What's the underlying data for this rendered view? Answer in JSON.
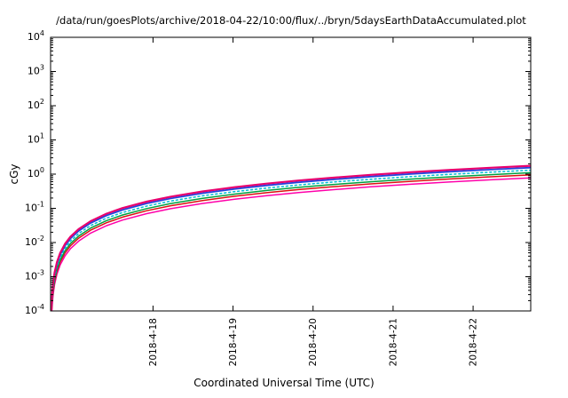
{
  "chart_data": {
    "type": "line",
    "title": "/data/run/goesPlots/archive/2018-04-22/10:00/flux/../bryn/5daysEarthDataAccumulated.plot",
    "xlabel": "Coordinated Universal Time (UTC)",
    "ylabel": "cGy",
    "y_scale": "log",
    "ylim_exponents": [
      -4,
      4
    ],
    "y_tick_exponents": [
      -4,
      -3,
      -2,
      -1,
      0,
      1,
      2,
      3,
      4
    ],
    "xlim_days": [
      0,
      6
    ],
    "grid": "off",
    "legend": "none",
    "x_ticks": [
      {
        "pos": 1.28,
        "label": "2018-4-18"
      },
      {
        "pos": 2.28,
        "label": "2018-4-19"
      },
      {
        "pos": 3.28,
        "label": "2018-4-20"
      },
      {
        "pos": 4.28,
        "label": "2018-4-21"
      },
      {
        "pos": 5.28,
        "label": "2018-4-22"
      }
    ],
    "x_days": [
      0.003,
      0.008,
      0.015,
      0.03,
      0.05,
      0.08,
      0.12,
      0.18,
      0.25,
      0.35,
      0.5,
      0.7,
      0.9,
      1.2,
      1.5,
      1.9,
      2.3,
      2.7,
      3.1,
      3.5,
      4.0,
      4.5,
      5.0,
      5.5,
      6.0
    ],
    "series": [
      {
        "name": "magenta-lower",
        "color": "#ff00aa",
        "width": 1.5,
        "dash": "",
        "values": [
          8.7e-06,
          3.8e-05,
          9.8e-05,
          0.000276,
          0.000593,
          0.0012,
          0.00221,
          0.00405,
          0.00664,
          0.011,
          0.0188,
          0.0311,
          0.0453,
          0.0698,
          0.0975,
          0.139,
          0.185,
          0.235,
          0.29,
          0.347,
          0.425,
          0.507,
          0.593,
          0.684,
          0.78
        ]
      },
      {
        "name": "red",
        "color": "#dd1111",
        "width": 1.5,
        "dash": "",
        "values": [
          1.06e-05,
          4.63e-05,
          0.000119,
          0.000336,
          0.000723,
          0.00146,
          0.00269,
          0.00494,
          0.00808,
          0.0134,
          0.0229,
          0.0379,
          0.0552,
          0.085,
          0.119,
          0.169,
          0.225,
          0.287,
          0.353,
          0.423,
          0.517,
          0.617,
          0.723,
          0.834,
          0.95
        ]
      },
      {
        "name": "green",
        "color": "#00a040",
        "width": 1.5,
        "dash": "",
        "values": [
          1.23e-05,
          5.36e-05,
          0.000138,
          0.000389,
          0.000837,
          0.00169,
          0.00311,
          0.00572,
          0.00936,
          0.0155,
          0.0265,
          0.0438,
          0.0639,
          0.0984,
          0.138,
          0.196,
          0.261,
          0.332,
          0.409,
          0.49,
          0.599,
          0.714,
          0.837,
          0.965,
          1.1
        ]
      },
      {
        "name": "cyan-dotted",
        "color": "#00bcd4",
        "width": 1.5,
        "dash": "2,3",
        "values": [
          1.45e-05,
          6.33e-05,
          0.000163,
          0.00046,
          0.000989,
          0.002,
          0.00367,
          0.00675,
          0.0111,
          0.0183,
          0.0313,
          0.0518,
          0.0755,
          0.116,
          0.163,
          0.232,
          0.308,
          0.392,
          0.483,
          0.579,
          0.708,
          0.844,
          0.989,
          1.14,
          1.3
        ]
      },
      {
        "name": "blue",
        "color": "#2244dd",
        "width": 1.8,
        "dash": "",
        "values": [
          1.73e-05,
          7.55e-05,
          0.000194,
          0.000548,
          0.00118,
          0.00238,
          0.00438,
          0.00805,
          0.0132,
          0.0218,
          0.0373,
          0.0618,
          0.09,
          0.139,
          0.194,
          0.276,
          0.368,
          0.468,
          0.576,
          0.691,
          0.844,
          1.01,
          1.18,
          1.36,
          1.55
        ]
      },
      {
        "name": "pink-upper",
        "color": "#e8006e",
        "width": 2.2,
        "dash": "",
        "values": [
          1.96e-05,
          8.52e-05,
          0.000219,
          0.000619,
          0.00133,
          0.00269,
          0.00495,
          0.00909,
          0.0149,
          0.0247,
          0.0421,
          0.0697,
          0.102,
          0.157,
          0.219,
          0.312,
          0.415,
          0.528,
          0.65,
          0.78,
          0.953,
          1.14,
          1.33,
          1.54,
          1.75
        ]
      }
    ]
  }
}
